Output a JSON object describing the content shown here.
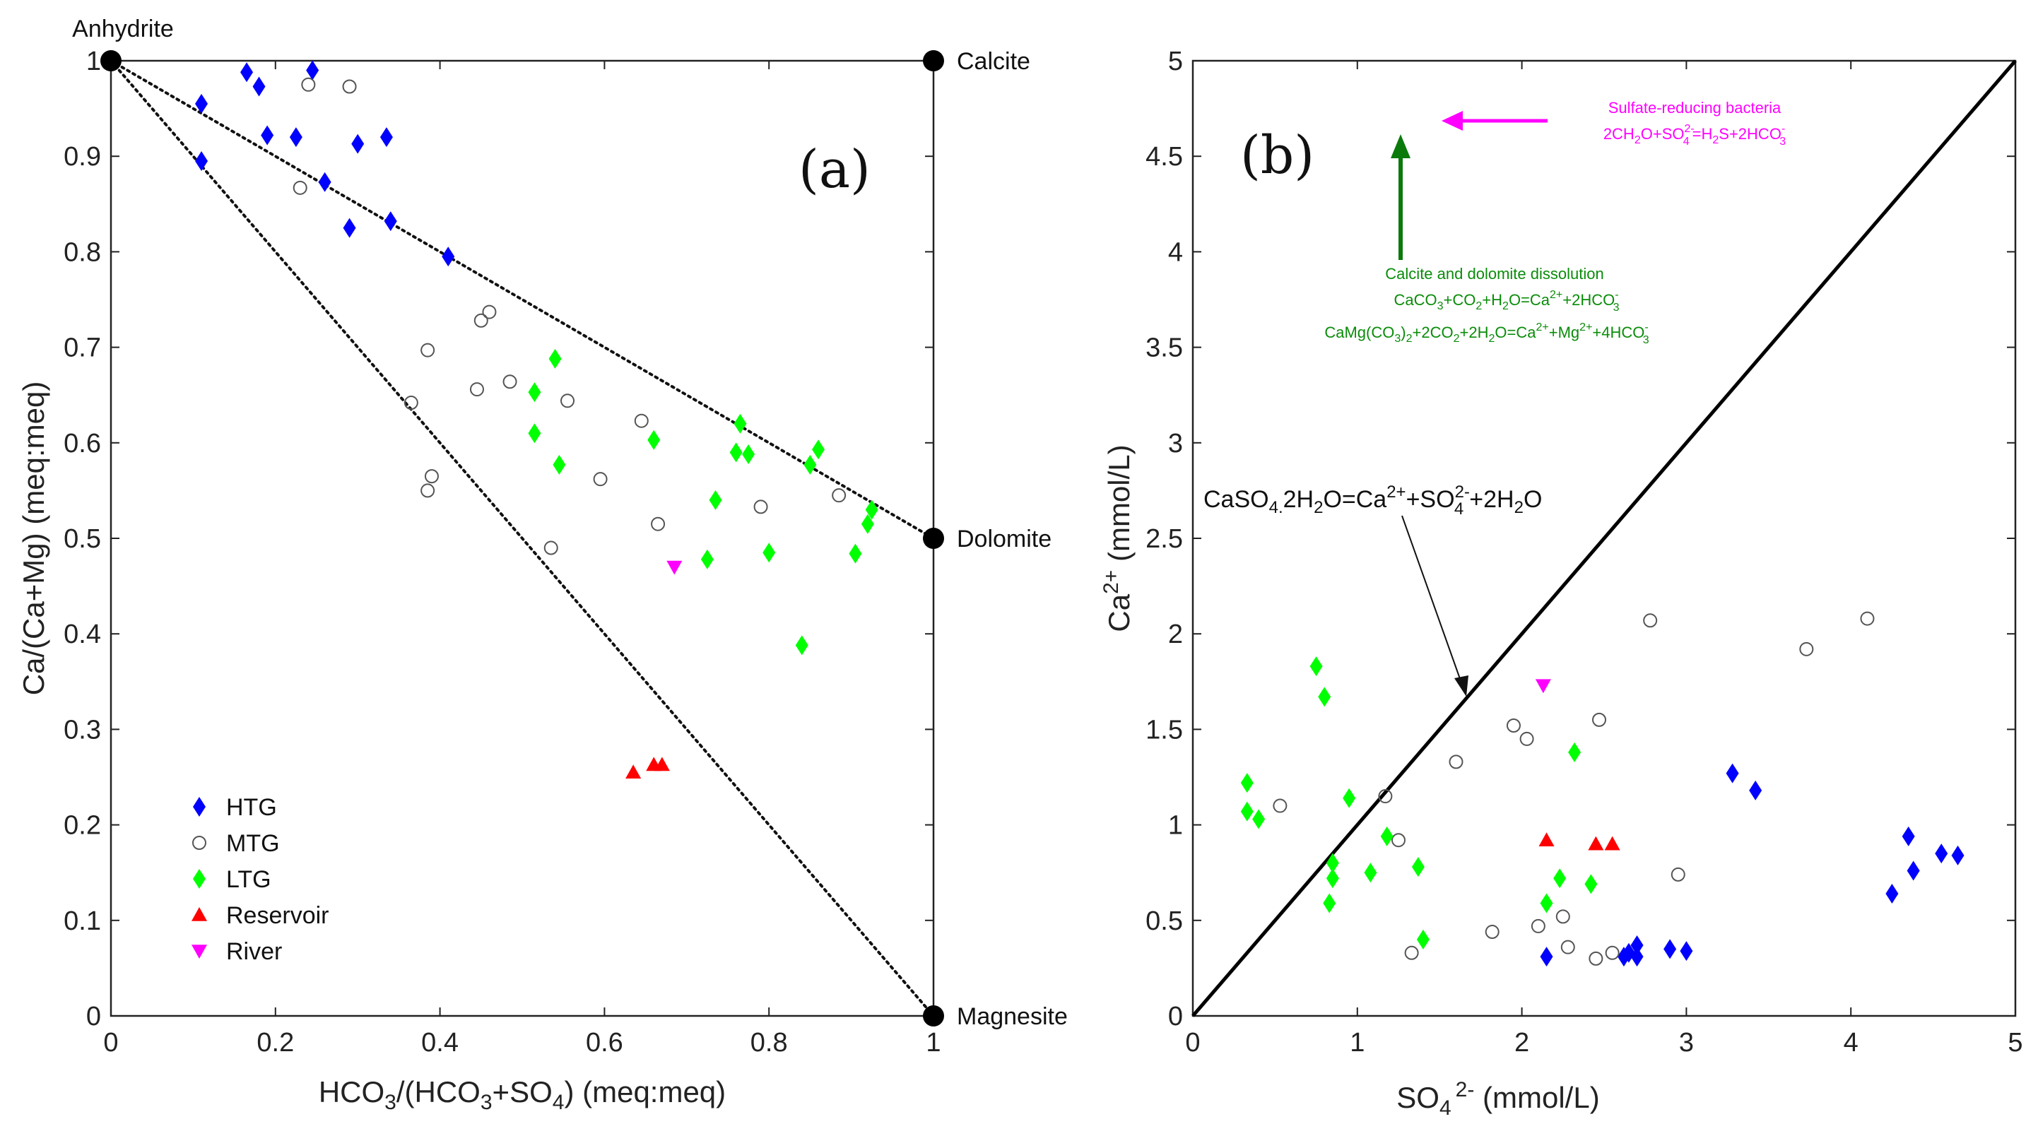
{
  "colors": {
    "HTG": "#0000ff",
    "MTG": "#555555",
    "LTG": "#00ff00",
    "Reservoir": "#ff0000",
    "River": "#ff00ff",
    "green_arrow": "#0a7a0a",
    "sulfate_text": "#ff00ff",
    "dissolution_text": "#0a8c0a"
  },
  "chart_data": [
    {
      "type": "scatter",
      "panel_tag": "(a)",
      "xlabel": "HCO3/(HCO3+SO4) (meq:meq)",
      "ylabel": "Ca/(Ca+Mg) (meq:meq)",
      "xlim": [
        0,
        1
      ],
      "ylim": [
        0,
        1
      ],
      "x_ticks": [
        "0",
        "0.2",
        "0.4",
        "0.6",
        "0.8",
        "1"
      ],
      "y_ticks": [
        "0",
        "0.1",
        "0.2",
        "0.3",
        "0.4",
        "0.5",
        "0.6",
        "0.7",
        "0.8",
        "0.9",
        "1"
      ],
      "corner_labels": [
        {
          "text": "Anhydrite",
          "x": 0,
          "y": 1
        },
        {
          "text": "Calcite",
          "x": 1,
          "y": 1
        },
        {
          "text": "Dolomite",
          "x": 1,
          "y": 0.5
        },
        {
          "text": "Magnesite",
          "x": 1,
          "y": 0
        }
      ],
      "legend": {
        "position": "bottom-left",
        "entries": [
          "HTG",
          "MTG",
          "LTG",
          "Reservoir",
          "River"
        ]
      },
      "series": [
        {
          "name": "HTG",
          "marker": "diamond",
          "points": [
            [
              0.11,
              0.955
            ],
            [
              0.11,
              0.895
            ],
            [
              0.165,
              0.988
            ],
            [
              0.18,
              0.973
            ],
            [
              0.19,
              0.922
            ],
            [
              0.225,
              0.92
            ],
            [
              0.245,
              0.99
            ],
            [
              0.26,
              0.873
            ],
            [
              0.29,
              0.825
            ],
            [
              0.3,
              0.913
            ],
            [
              0.335,
              0.92
            ],
            [
              0.34,
              0.832
            ],
            [
              0.41,
              0.795
            ]
          ]
        },
        {
          "name": "MTG",
          "marker": "circle",
          "points": [
            [
              0.23,
              0.867
            ],
            [
              0.24,
              0.975
            ],
            [
              0.29,
              0.973
            ],
            [
              0.365,
              0.642
            ],
            [
              0.385,
              0.697
            ],
            [
              0.385,
              0.55
            ],
            [
              0.39,
              0.565
            ],
            [
              0.445,
              0.656
            ],
            [
              0.45,
              0.728
            ],
            [
              0.46,
              0.737
            ],
            [
              0.485,
              0.664
            ],
            [
              0.535,
              0.49
            ],
            [
              0.555,
              0.644
            ],
            [
              0.595,
              0.562
            ],
            [
              0.645,
              0.623
            ],
            [
              0.665,
              0.515
            ],
            [
              0.79,
              0.533
            ],
            [
              0.885,
              0.545
            ]
          ]
        },
        {
          "name": "LTG",
          "marker": "diamond",
          "points": [
            [
              0.515,
              0.653
            ],
            [
              0.515,
              0.61
            ],
            [
              0.54,
              0.688
            ],
            [
              0.545,
              0.577
            ],
            [
              0.66,
              0.603
            ],
            [
              0.725,
              0.478
            ],
            [
              0.735,
              0.54
            ],
            [
              0.76,
              0.59
            ],
            [
              0.765,
              0.62
            ],
            [
              0.775,
              0.588
            ],
            [
              0.8,
              0.485
            ],
            [
              0.84,
              0.388
            ],
            [
              0.85,
              0.577
            ],
            [
              0.86,
              0.593
            ],
            [
              0.905,
              0.484
            ],
            [
              0.92,
              0.515
            ],
            [
              0.925,
              0.53
            ]
          ]
        },
        {
          "name": "Reservoir",
          "marker": "triangle-up",
          "points": [
            [
              0.635,
              0.255
            ],
            [
              0.66,
              0.263
            ],
            [
              0.67,
              0.263
            ]
          ]
        },
        {
          "name": "River",
          "marker": "triangle-down",
          "points": [
            [
              0.685,
              0.47
            ]
          ]
        }
      ],
      "reference_lines": [
        "Anhydrite-Dolomite",
        "Anhydrite-Magnesite"
      ]
    },
    {
      "type": "scatter",
      "panel_tag": "(b)",
      "xlabel": "SO4 2- (mmol/L)",
      "ylabel": "Ca2+ (mmol/L)",
      "xlim": [
        0,
        5
      ],
      "ylim": [
        0,
        5
      ],
      "x_ticks": [
        "0",
        "1",
        "2",
        "3",
        "4",
        "5"
      ],
      "y_ticks": [
        "0",
        "0.5",
        "1",
        "1.5",
        "2",
        "2.5",
        "3",
        "3.5",
        "4",
        "4.5",
        "5"
      ],
      "one_to_one_line": true,
      "annotations": {
        "gypsum": "CaSO4.2H2O=Ca2++SO42-+2H2O",
        "sulfate_title": "Sulfate-reducing bacteria",
        "sulfate_eq": "2CH2O+SO42-=H2S+2HCO3-",
        "dissolution_title": "Calcite and dolomite dissolution",
        "dissolution_eq1": "CaCO3+CO2+H2O=Ca2++2HCO3-",
        "dissolution_eq2": "CaMg(CO3)2+2CO2+2H2O=Ca2++Mg2++4HCO3-"
      },
      "series": [
        {
          "name": "HTG",
          "marker": "diamond",
          "points": [
            [
              2.15,
              0.31
            ],
            [
              2.62,
              0.31
            ],
            [
              2.65,
              0.33
            ],
            [
              2.7,
              0.31
            ],
            [
              2.7,
              0.37
            ],
            [
              2.9,
              0.35
            ],
            [
              3.0,
              0.34
            ],
            [
              3.28,
              1.27
            ],
            [
              3.42,
              1.18
            ],
            [
              4.25,
              0.64
            ],
            [
              4.35,
              0.94
            ],
            [
              4.38,
              0.76
            ],
            [
              4.55,
              0.85
            ],
            [
              4.65,
              0.84
            ]
          ]
        },
        {
          "name": "MTG",
          "marker": "circle",
          "points": [
            [
              0.53,
              1.1
            ],
            [
              1.17,
              1.15
            ],
            [
              1.25,
              0.92
            ],
            [
              1.33,
              0.33
            ],
            [
              1.6,
              1.33
            ],
            [
              1.82,
              0.44
            ],
            [
              1.95,
              1.52
            ],
            [
              2.03,
              1.45
            ],
            [
              2.1,
              0.47
            ],
            [
              2.25,
              0.52
            ],
            [
              2.28,
              0.36
            ],
            [
              2.45,
              0.3
            ],
            [
              2.47,
              1.55
            ],
            [
              2.55,
              0.33
            ],
            [
              2.78,
              2.07
            ],
            [
              2.95,
              0.74
            ],
            [
              3.73,
              1.92
            ],
            [
              4.1,
              2.08
            ]
          ]
        },
        {
          "name": "LTG",
          "marker": "diamond",
          "points": [
            [
              0.33,
              1.22
            ],
            [
              0.33,
              1.07
            ],
            [
              0.4,
              1.03
            ],
            [
              0.75,
              1.83
            ],
            [
              0.8,
              1.67
            ],
            [
              0.83,
              0.59
            ],
            [
              0.85,
              0.8
            ],
            [
              0.85,
              0.72
            ],
            [
              0.95,
              1.14
            ],
            [
              1.08,
              0.75
            ],
            [
              1.18,
              0.94
            ],
            [
              1.37,
              0.78
            ],
            [
              1.4,
              0.4
            ],
            [
              2.15,
              0.59
            ],
            [
              2.23,
              0.72
            ],
            [
              2.32,
              1.38
            ],
            [
              2.42,
              0.69
            ]
          ]
        },
        {
          "name": "Reservoir",
          "marker": "triangle-up",
          "points": [
            [
              2.15,
              0.92
            ],
            [
              2.45,
              0.9
            ],
            [
              2.55,
              0.9
            ]
          ]
        },
        {
          "name": "River",
          "marker": "triangle-down",
          "points": [
            [
              2.13,
              1.73
            ]
          ]
        }
      ]
    }
  ]
}
